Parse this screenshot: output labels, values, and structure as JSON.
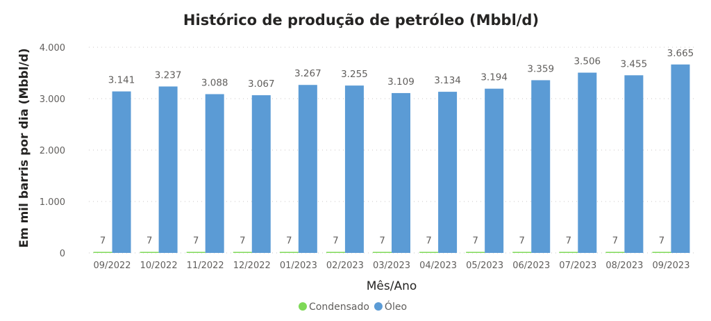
{
  "chart_data": {
    "type": "bar",
    "title": "Histórico de produção de petróleo (Mbbl/d)",
    "xlabel": "Mês/Ano",
    "ylabel": "Em mil barris por dia (Mbbl/d)",
    "ylim": [
      0,
      4000
    ],
    "yticks": [
      0,
      1000,
      2000,
      3000,
      4000
    ],
    "ytick_labels": [
      "0",
      "1.000",
      "2.000",
      "3.000",
      "4.000"
    ],
    "grid": true,
    "legend_position": "bottom-center",
    "categories": [
      "09/2022",
      "10/2022",
      "11/2022",
      "12/2022",
      "01/2023",
      "02/2023",
      "03/2023",
      "04/2023",
      "05/2023",
      "06/2023",
      "07/2023",
      "08/2023",
      "09/2023"
    ],
    "series": [
      {
        "name": "Condensado",
        "color": "#7ed957",
        "values": [
          7,
          7,
          7,
          7,
          7,
          7,
          7,
          7,
          7,
          7,
          7,
          7,
          7
        ],
        "labels": [
          "7",
          "7",
          "7",
          "7",
          "7",
          "7",
          "7",
          "7",
          "7",
          "7",
          "7",
          "7",
          "7"
        ]
      },
      {
        "name": "Óleo",
        "color": "#5b9bd5",
        "values": [
          3141,
          3237,
          3088,
          3067,
          3267,
          3255,
          3109,
          3134,
          3194,
          3359,
          3506,
          3455,
          3665
        ],
        "labels": [
          "3.141",
          "3.237",
          "3.088",
          "3.067",
          "3.267",
          "3.255",
          "3.109",
          "3.134",
          "3.194",
          "3.359",
          "3.506",
          "3.455",
          "3.665"
        ]
      }
    ]
  }
}
